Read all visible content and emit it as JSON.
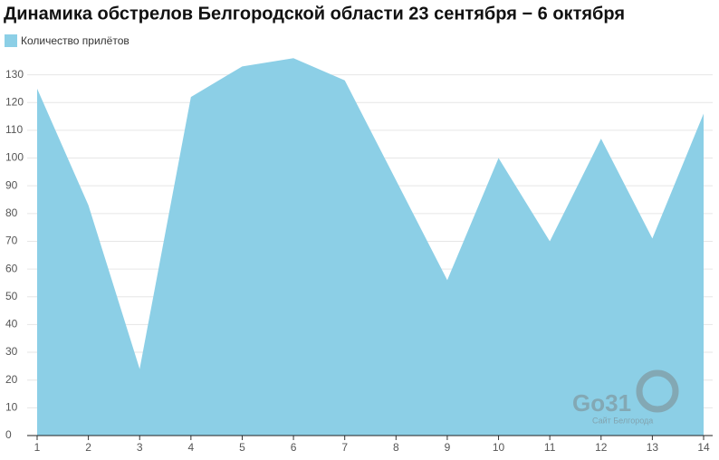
{
  "chart_data": {
    "type": "area",
    "title": "Динамика обстрелов Белгородской области 23 сентября − 6 октября",
    "x": [
      1,
      2,
      3,
      4,
      5,
      6,
      7,
      8,
      9,
      10,
      11,
      12,
      13,
      14
    ],
    "series": [
      {
        "name": "Количество прилётов",
        "color": "#8ccfe6",
        "values": [
          125,
          83,
          24,
          122,
          133,
          136,
          128,
          92,
          56,
          100,
          70,
          107,
          71,
          116
        ]
      }
    ],
    "xlim": [
      1,
      14
    ],
    "xticks": [
      1,
      2,
      3,
      4,
      5,
      6,
      7,
      8,
      9,
      10,
      11,
      12,
      13,
      14
    ],
    "ylim": [
      0,
      139
    ],
    "yticks": [
      0,
      10,
      20,
      30,
      40,
      50,
      60,
      70,
      80,
      90,
      100,
      110,
      120,
      130
    ],
    "grid": true,
    "legend": "top-left",
    "watermark": {
      "logo": "Go31",
      "caption": "Сайт Белгорода"
    }
  }
}
